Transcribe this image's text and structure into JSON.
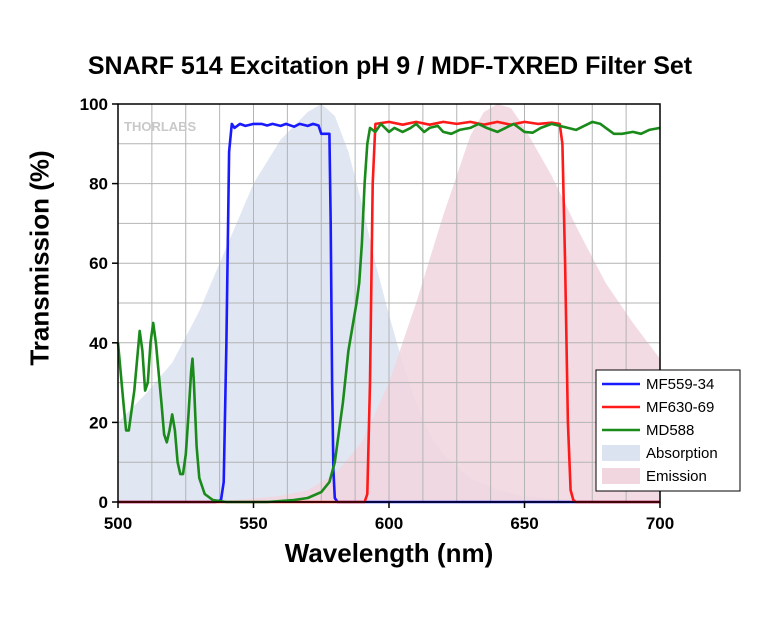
{
  "chart_data": {
    "type": "line",
    "title": "SNARF 514 Excitation pH 9 / MDF-TXRED Filter Set",
    "xlabel": "Wavelength (nm)",
    "ylabel": "Transmission (%)",
    "xlim": [
      500,
      700
    ],
    "ylim": [
      0,
      100
    ],
    "x_ticks": [
      500,
      550,
      600,
      650,
      700
    ],
    "y_ticks": [
      0,
      20,
      40,
      60,
      80,
      100
    ],
    "grid": true,
    "legend_position": "bottom-right",
    "watermark": "THORLABS",
    "series": [
      {
        "name": "MF559-34",
        "kind": "line",
        "color": "#1a1aff",
        "points": [
          [
            500,
            0
          ],
          [
            536,
            0
          ],
          [
            538,
            0.5
          ],
          [
            539,
            5
          ],
          [
            540,
            40
          ],
          [
            541,
            88
          ],
          [
            542,
            95
          ],
          [
            543,
            94
          ],
          [
            545,
            95
          ],
          [
            547,
            94.5
          ],
          [
            550,
            95
          ],
          [
            553,
            95
          ],
          [
            555,
            94.6
          ],
          [
            557,
            95
          ],
          [
            560,
            94.5
          ],
          [
            562,
            95
          ],
          [
            565,
            94.3
          ],
          [
            567,
            95
          ],
          [
            570,
            94.5
          ],
          [
            572,
            95
          ],
          [
            574,
            94.6
          ],
          [
            575,
            92.5
          ],
          [
            578,
            92.5
          ],
          [
            578.5,
            70
          ],
          [
            579,
            30
          ],
          [
            579.5,
            8
          ],
          [
            580,
            1
          ],
          [
            581,
            0
          ],
          [
            700,
            0
          ]
        ]
      },
      {
        "name": "MF630-69",
        "kind": "line",
        "color": "#ff1a1a",
        "points": [
          [
            500,
            0
          ],
          [
            591,
            0
          ],
          [
            592,
            2
          ],
          [
            593,
            30
          ],
          [
            594,
            80
          ],
          [
            595,
            95
          ],
          [
            600,
            95.5
          ],
          [
            605,
            94.8
          ],
          [
            610,
            95.5
          ],
          [
            615,
            94.8
          ],
          [
            620,
            95.5
          ],
          [
            625,
            95
          ],
          [
            630,
            95.5
          ],
          [
            635,
            94.8
          ],
          [
            640,
            95.5
          ],
          [
            645,
            94.8
          ],
          [
            650,
            95.5
          ],
          [
            655,
            95
          ],
          [
            660,
            95.3
          ],
          [
            663,
            95
          ],
          [
            664,
            90
          ],
          [
            665,
            60
          ],
          [
            666,
            20
          ],
          [
            667,
            3
          ],
          [
            668,
            0.5
          ],
          [
            669,
            0
          ],
          [
            700,
            0
          ]
        ]
      },
      {
        "name": "MD588",
        "kind": "line",
        "color": "#1a8a1a",
        "points": [
          [
            500,
            40
          ],
          [
            502,
            25
          ],
          [
            503,
            18
          ],
          [
            504,
            18
          ],
          [
            506,
            28
          ],
          [
            508,
            43
          ],
          [
            509,
            38
          ],
          [
            510,
            28
          ],
          [
            511,
            30
          ],
          [
            512,
            40
          ],
          [
            513,
            45
          ],
          [
            514,
            40
          ],
          [
            516,
            25
          ],
          [
            517,
            17
          ],
          [
            518,
            15
          ],
          [
            519,
            18
          ],
          [
            520,
            22
          ],
          [
            521,
            18
          ],
          [
            522,
            10
          ],
          [
            523,
            7
          ],
          [
            524,
            7
          ],
          [
            525,
            12
          ],
          [
            526,
            22
          ],
          [
            527,
            33
          ],
          [
            527.5,
            36
          ],
          [
            528,
            30
          ],
          [
            529,
            14
          ],
          [
            530,
            6
          ],
          [
            532,
            2
          ],
          [
            535,
            0.5
          ],
          [
            540,
            0
          ],
          [
            555,
            0
          ],
          [
            565,
            0.5
          ],
          [
            570,
            1
          ],
          [
            575,
            2.5
          ],
          [
            578,
            5
          ],
          [
            580,
            10
          ],
          [
            583,
            25
          ],
          [
            585,
            38
          ],
          [
            587,
            46
          ],
          [
            588,
            50
          ],
          [
            589,
            55
          ],
          [
            590,
            65
          ],
          [
            591,
            80
          ],
          [
            592,
            90
          ],
          [
            593,
            94
          ],
          [
            595,
            93
          ],
          [
            597,
            95
          ],
          [
            600,
            93
          ],
          [
            602,
            94
          ],
          [
            605,
            93
          ],
          [
            608,
            94
          ],
          [
            610,
            95
          ],
          [
            613,
            93
          ],
          [
            615,
            94
          ],
          [
            618,
            94.5
          ],
          [
            620,
            93
          ],
          [
            623,
            92.5
          ],
          [
            626,
            93.5
          ],
          [
            630,
            94
          ],
          [
            633,
            95
          ],
          [
            636,
            94
          ],
          [
            640,
            93
          ],
          [
            643,
            94
          ],
          [
            646,
            95
          ],
          [
            650,
            93
          ],
          [
            653,
            92.8
          ],
          [
            656,
            94
          ],
          [
            660,
            95
          ],
          [
            663,
            94.5
          ],
          [
            666,
            94
          ],
          [
            669,
            93.5
          ],
          [
            672,
            94.5
          ],
          [
            675,
            95.5
          ],
          [
            678,
            95
          ],
          [
            680,
            94
          ],
          [
            683,
            92.5
          ],
          [
            686,
            92.5
          ],
          [
            690,
            93
          ],
          [
            693,
            92.5
          ],
          [
            696,
            93.5
          ],
          [
            700,
            94
          ]
        ]
      },
      {
        "name": "Absorption",
        "kind": "area",
        "color": "#dbe2f0",
        "points": [
          [
            500,
            20
          ],
          [
            510,
            27
          ],
          [
            520,
            35
          ],
          [
            530,
            48
          ],
          [
            540,
            64
          ],
          [
            550,
            80
          ],
          [
            560,
            91
          ],
          [
            570,
            98
          ],
          [
            575,
            100
          ],
          [
            580,
            97
          ],
          [
            585,
            88
          ],
          [
            590,
            75
          ],
          [
            595,
            60
          ],
          [
            600,
            47
          ],
          [
            605,
            35
          ],
          [
            610,
            25
          ],
          [
            615,
            17
          ],
          [
            620,
            12
          ],
          [
            630,
            6
          ],
          [
            640,
            3
          ],
          [
            650,
            1.5
          ],
          [
            660,
            0.8
          ],
          [
            680,
            0.3
          ],
          [
            700,
            0.1
          ]
        ]
      },
      {
        "name": "Emission",
        "kind": "area",
        "color": "#f1d5df",
        "points": [
          [
            500,
            0
          ],
          [
            540,
            0.3
          ],
          [
            560,
            1.5
          ],
          [
            570,
            3
          ],
          [
            580,
            7
          ],
          [
            590,
            15
          ],
          [
            600,
            30
          ],
          [
            610,
            50
          ],
          [
            620,
            72
          ],
          [
            630,
            92
          ],
          [
            635,
            98
          ],
          [
            640,
            100
          ],
          [
            645,
            99
          ],
          [
            650,
            94
          ],
          [
            660,
            82
          ],
          [
            670,
            68
          ],
          [
            680,
            55
          ],
          [
            690,
            45
          ],
          [
            700,
            36
          ]
        ]
      }
    ]
  }
}
